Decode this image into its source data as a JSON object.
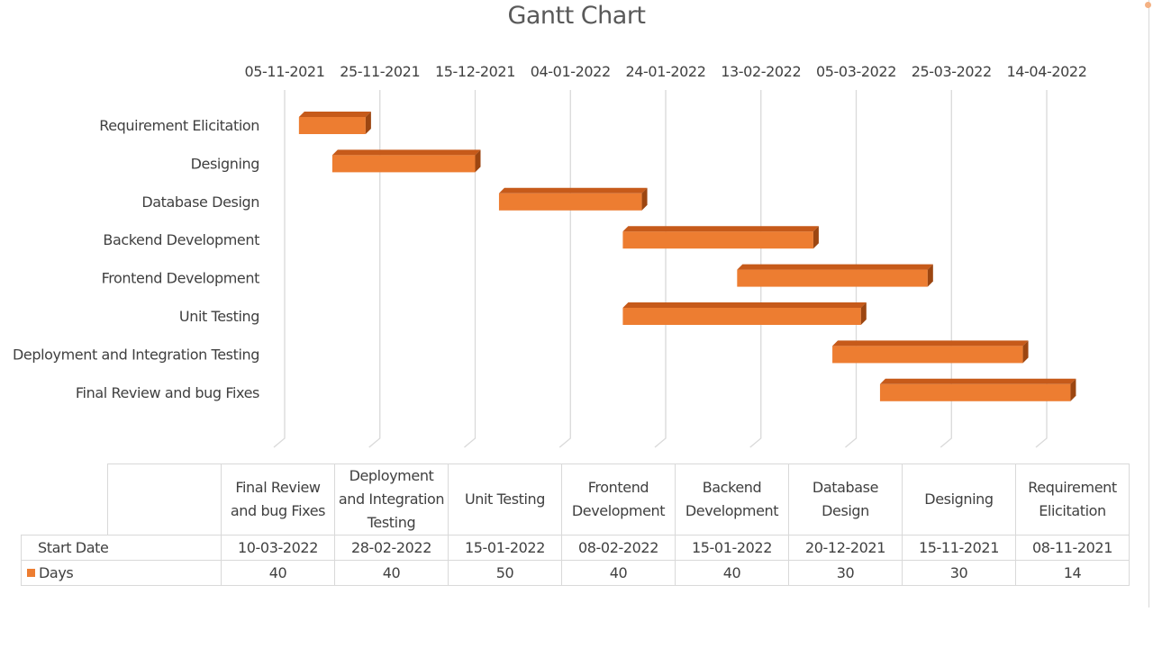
{
  "chart_data": {
    "type": "bar",
    "title": "Gantt Chart",
    "x_axis": {
      "type": "date",
      "range": [
        "2021-11-05",
        "2022-04-14"
      ],
      "tick_labels": [
        "05-11-2021",
        "25-11-2021",
        "15-12-2021",
        "04-01-2022",
        "24-01-2022",
        "13-02-2022",
        "05-03-2022",
        "25-03-2022",
        "14-04-2022"
      ],
      "position": "top",
      "grid": true
    },
    "categories": [
      "Requirement Elicitation",
      "Designing",
      "Database Design",
      "Backend Development",
      "Frontend Development",
      "Unit Testing",
      "Deployment and Integration Testing",
      "Final Review and bug Fixes"
    ],
    "start_dates": [
      "08-11-2021",
      "15-11-2021",
      "20-12-2021",
      "15-01-2022",
      "08-02-2022",
      "15-01-2022",
      "28-02-2022",
      "10-03-2022"
    ],
    "days": [
      14,
      30,
      30,
      40,
      40,
      50,
      40,
      40
    ],
    "bar_color": "#ed7d31",
    "legend": [
      "Days"
    ],
    "data_table": {
      "columns": [
        "Final Review and bug Fixes",
        "Deployment and Integration Testing",
        "Unit Testing",
        "Frontend Development",
        "Backend Development",
        "Database Design",
        "Designing",
        "Requirement Elicitation"
      ],
      "rows": [
        {
          "label": "Start Date",
          "values": [
            "10-03-2022",
            "28-02-2022",
            "15-01-2022",
            "08-02-2022",
            "15-01-2022",
            "20-12-2021",
            "15-11-2021",
            "08-11-2021"
          ]
        },
        {
          "label": "Days",
          "values": [
            "40",
            "40",
            "50",
            "40",
            "40",
            "30",
            "30",
            "14"
          ]
        }
      ]
    }
  }
}
